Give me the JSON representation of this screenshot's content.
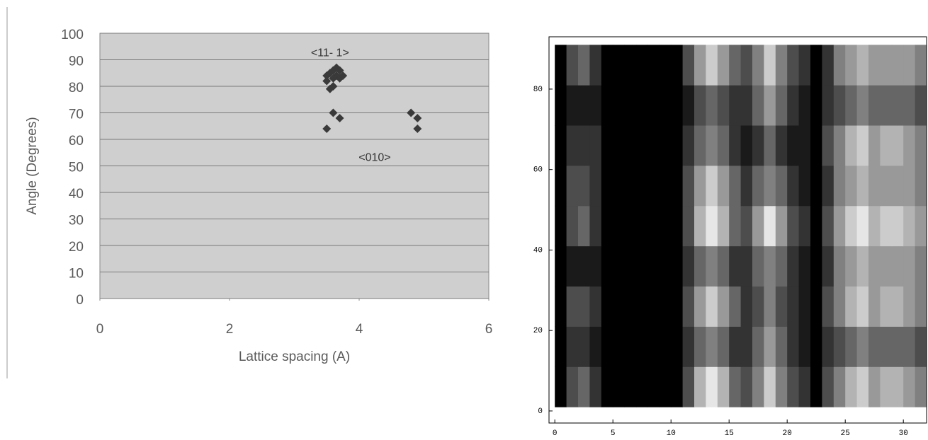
{
  "chart_data": [
    {
      "type": "scatter",
      "x_label": "Lattice spacing (A)",
      "y_label": "Angle (Degrees)",
      "x": [
        3.5,
        3.55,
        3.6,
        3.65,
        3.7,
        3.6,
        3.55,
        3.65,
        3.7,
        3.5,
        3.6,
        3.75,
        3.6,
        3.7,
        3.5,
        4.8,
        4.9,
        4.9
      ],
      "values": [
        82,
        85,
        86,
        84,
        83,
        80,
        79,
        87,
        86,
        84,
        83,
        84,
        70,
        68,
        64,
        70,
        68,
        64
      ],
      "color": "#3a3a3a",
      "xlim": [
        0,
        6
      ],
      "xticks": [
        0,
        2,
        4,
        6
      ],
      "ylim": [
        0,
        100
      ],
      "yticks": [
        0,
        10,
        20,
        30,
        40,
        50,
        60,
        70,
        80,
        90,
        100
      ],
      "grid": true,
      "annotations": [
        {
          "text": "<11- 1>",
          "x": 3.55,
          "y": 92.5
        },
        {
          "text": "<010>",
          "x": 4.24,
          "y": 53
        }
      ]
    },
    {
      "type": "heatmap",
      "x": [
        0,
        1,
        2,
        3,
        4,
        5,
        6,
        7,
        8,
        9,
        10,
        11,
        12,
        13,
        14,
        15,
        16,
        17,
        18,
        19,
        20,
        21,
        22,
        23,
        24,
        25,
        26,
        27,
        28,
        29,
        30,
        31,
        32
      ],
      "y": [
        1,
        11,
        21,
        31,
        41,
        51,
        61,
        71,
        81,
        91
      ],
      "z": [
        [
          0,
          0.3,
          0.4,
          0.2,
          0,
          0,
          0,
          0,
          0,
          0,
          0,
          0.3,
          0.7,
          0.9,
          0.7,
          0.4,
          0.3,
          0.5,
          0.8,
          0.5,
          0.3,
          0.2,
          0,
          0.3,
          0.5,
          0.7,
          0.8,
          0.6,
          0.7,
          0.7,
          0.6,
          0.5
        ],
        [
          0,
          0.2,
          0.2,
          0.1,
          0,
          0,
          0,
          0,
          0,
          0,
          0,
          0.2,
          0.4,
          0.5,
          0.4,
          0.2,
          0.2,
          0.4,
          0.6,
          0.4,
          0.2,
          0.1,
          0,
          0.2,
          0.3,
          0.4,
          0.5,
          0.4,
          0.4,
          0.4,
          0.4,
          0.3
        ],
        [
          0,
          0.3,
          0.3,
          0.2,
          0,
          0,
          0,
          0,
          0,
          0,
          0,
          0.3,
          0.6,
          0.8,
          0.6,
          0.4,
          0.2,
          0.3,
          0.5,
          0.3,
          0.2,
          0.1,
          0,
          0.3,
          0.5,
          0.7,
          0.8,
          0.6,
          0.7,
          0.7,
          0.6,
          0.5
        ],
        [
          0,
          0.1,
          0.1,
          0.1,
          0,
          0,
          0,
          0,
          0,
          0,
          0,
          0.2,
          0.4,
          0.5,
          0.4,
          0.2,
          0.2,
          0.4,
          0.5,
          0.4,
          0.2,
          0.1,
          0,
          0.2,
          0.5,
          0.6,
          0.7,
          0.6,
          0.6,
          0.6,
          0.6,
          0.5
        ],
        [
          0,
          0.3,
          0.4,
          0.2,
          0,
          0,
          0,
          0,
          0,
          0,
          0,
          0.3,
          0.7,
          0.9,
          0.7,
          0.4,
          0.3,
          0.6,
          0.9,
          0.6,
          0.3,
          0.2,
          0,
          0.3,
          0.6,
          0.8,
          0.9,
          0.7,
          0.8,
          0.8,
          0.7,
          0.6
        ],
        [
          0,
          0.3,
          0.3,
          0.2,
          0,
          0,
          0,
          0,
          0,
          0,
          0,
          0.3,
          0.6,
          0.8,
          0.6,
          0.4,
          0.2,
          0.4,
          0.5,
          0.4,
          0.2,
          0.1,
          0,
          0.2,
          0.5,
          0.6,
          0.7,
          0.6,
          0.6,
          0.6,
          0.6,
          0.5
        ],
        [
          0,
          0.2,
          0.2,
          0.2,
          0,
          0,
          0,
          0,
          0,
          0,
          0,
          0.2,
          0.4,
          0.5,
          0.4,
          0.2,
          0.1,
          0.2,
          0.4,
          0.2,
          0.1,
          0.1,
          0,
          0.3,
          0.5,
          0.7,
          0.8,
          0.6,
          0.7,
          0.7,
          0.6,
          0.5
        ],
        [
          0,
          0.1,
          0.1,
          0.1,
          0,
          0,
          0,
          0,
          0,
          0,
          0,
          0.1,
          0.3,
          0.4,
          0.3,
          0.2,
          0.2,
          0.4,
          0.6,
          0.4,
          0.2,
          0.1,
          0,
          0.2,
          0.3,
          0.4,
          0.5,
          0.4,
          0.4,
          0.4,
          0.4,
          0.3
        ],
        [
          0,
          0.3,
          0.4,
          0.2,
          0,
          0,
          0,
          0,
          0,
          0,
          0,
          0.3,
          0.6,
          0.8,
          0.6,
          0.4,
          0.3,
          0.5,
          0.8,
          0.5,
          0.3,
          0.2,
          0,
          0.2,
          0.5,
          0.6,
          0.7,
          0.6,
          0.6,
          0.6,
          0.6,
          0.5
        ]
      ],
      "xlim": [
        -0.5,
        32
      ],
      "xticks": [
        0,
        5,
        10,
        15,
        20,
        25,
        30
      ],
      "ylim": [
        -3,
        93
      ],
      "yticks": [
        0,
        20,
        40,
        60,
        80
      ]
    }
  ]
}
